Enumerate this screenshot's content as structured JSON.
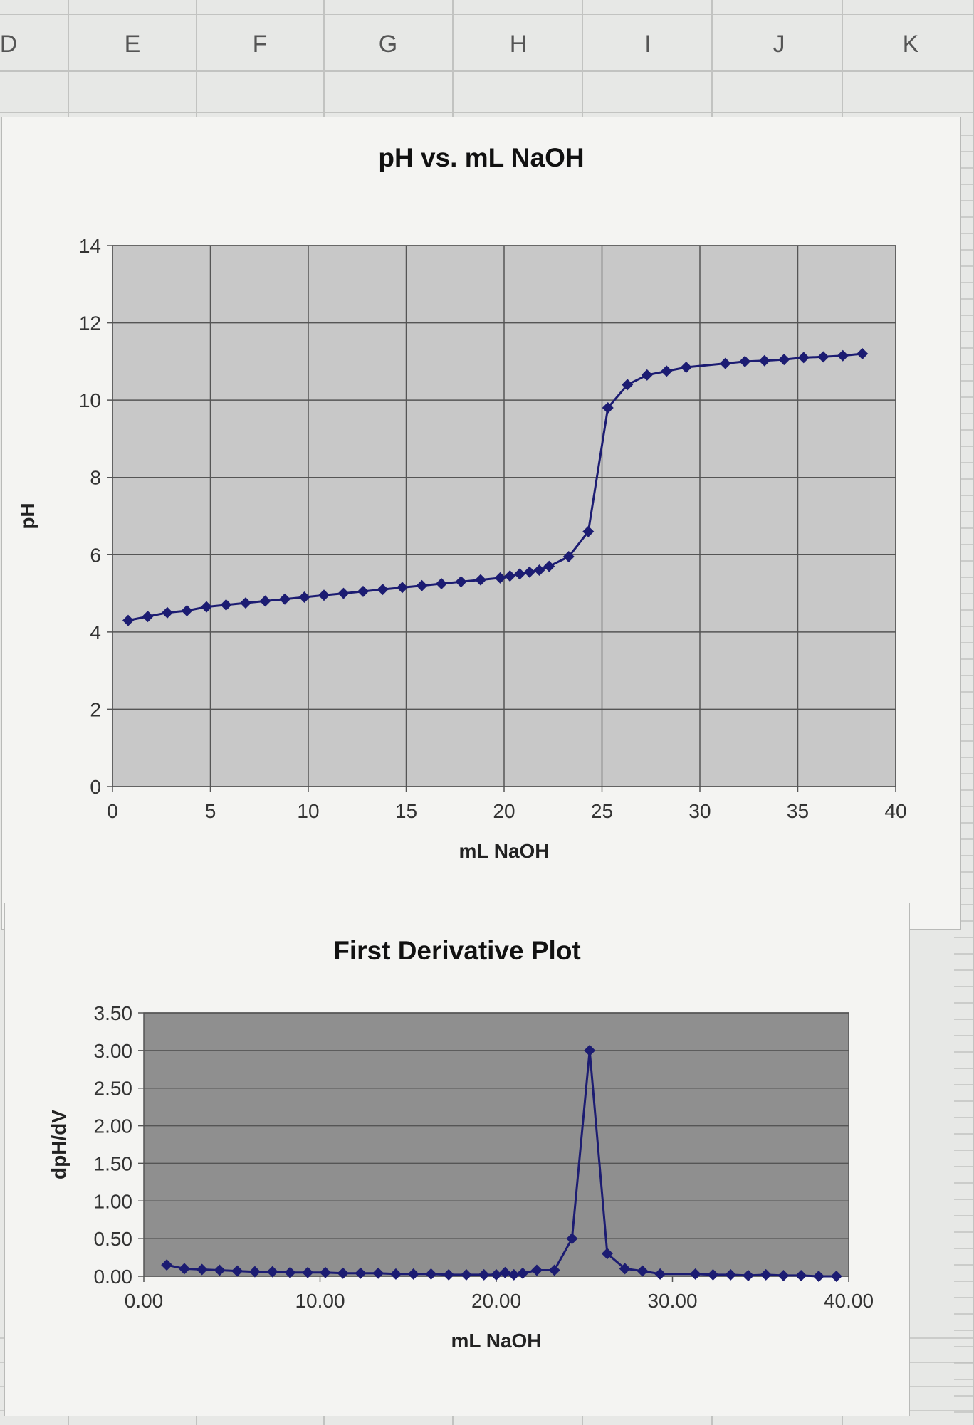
{
  "spreadsheet": {
    "column_headers": [
      "D",
      "E",
      "F",
      "G",
      "H",
      "I",
      "J",
      "K"
    ]
  },
  "chart_data": [
    {
      "type": "line",
      "title": "pH vs. mL NaOH",
      "xlabel": "mL NaOH",
      "ylabel": "pH",
      "xlim": [
        0,
        40
      ],
      "ylim": [
        0,
        14
      ],
      "xticks": [
        "0",
        "5",
        "10",
        "15",
        "20",
        "25",
        "30",
        "35",
        "40"
      ],
      "yticks": [
        "0",
        "2",
        "4",
        "6",
        "8",
        "10",
        "12",
        "14"
      ],
      "grid": true,
      "plot_background": "#c8c8c8",
      "line_color": "#1c1c72",
      "marker": "diamond",
      "series": [
        {
          "x": [
            0.8,
            1.8,
            2.8,
            3.8,
            4.8,
            5.8,
            6.8,
            7.8,
            8.8,
            9.8,
            10.8,
            11.8,
            12.8,
            13.8,
            14.8,
            15.8,
            16.8,
            17.8,
            18.8,
            19.8,
            20.3,
            20.8,
            21.3,
            21.8,
            22.3,
            23.3,
            24.3,
            25.3,
            26.3,
            27.3,
            28.3,
            29.3,
            31.3,
            32.3,
            33.3,
            34.3,
            35.3,
            36.3,
            37.3,
            38.3
          ],
          "y": [
            4.3,
            4.4,
            4.5,
            4.55,
            4.65,
            4.7,
            4.75,
            4.8,
            4.85,
            4.9,
            4.95,
            5.0,
            5.05,
            5.1,
            5.15,
            5.2,
            5.25,
            5.3,
            5.35,
            5.4,
            5.45,
            5.5,
            5.55,
            5.6,
            5.7,
            5.95,
            6.6,
            9.8,
            10.4,
            10.65,
            10.75,
            10.85,
            10.95,
            11.0,
            11.02,
            11.05,
            11.1,
            11.12,
            11.15,
            11.2
          ]
        }
      ]
    },
    {
      "type": "line",
      "title": "First Derivative Plot",
      "xlabel": "mL NaOH",
      "ylabel": "dpH/dV",
      "xlim": [
        0,
        40
      ],
      "ylim": [
        0,
        3.5
      ],
      "xticks": [
        "0.00",
        "10.00",
        "20.00",
        "30.00",
        "40.00"
      ],
      "yticks": [
        "0.00",
        "0.50",
        "1.00",
        "1.50",
        "2.00",
        "2.50",
        "3.00",
        "3.50"
      ],
      "grid": true,
      "plot_background": "#8f8f8f",
      "line_color": "#1c1c72",
      "marker": "diamond",
      "series": [
        {
          "x": [
            1.3,
            2.3,
            3.3,
            4.3,
            5.3,
            6.3,
            7.3,
            8.3,
            9.3,
            10.3,
            11.3,
            12.3,
            13.3,
            14.3,
            15.3,
            16.3,
            17.3,
            18.3,
            19.3,
            20.0,
            20.5,
            21.0,
            21.5,
            22.3,
            23.3,
            24.3,
            25.3,
            26.3,
            27.3,
            28.3,
            29.3,
            31.3,
            32.3,
            33.3,
            34.3,
            35.3,
            36.3,
            37.3,
            38.3,
            39.3
          ],
          "y": [
            0.15,
            0.1,
            0.09,
            0.08,
            0.07,
            0.06,
            0.06,
            0.05,
            0.05,
            0.05,
            0.04,
            0.04,
            0.04,
            0.03,
            0.03,
            0.03,
            0.02,
            0.02,
            0.02,
            0.02,
            0.05,
            0.02,
            0.04,
            0.08,
            0.08,
            0.5,
            3.0,
            0.3,
            0.1,
            0.07,
            0.03,
            0.03,
            0.02,
            0.02,
            0.01,
            0.02,
            0.01,
            0.01,
            0.0,
            0.0
          ]
        }
      ]
    }
  ]
}
